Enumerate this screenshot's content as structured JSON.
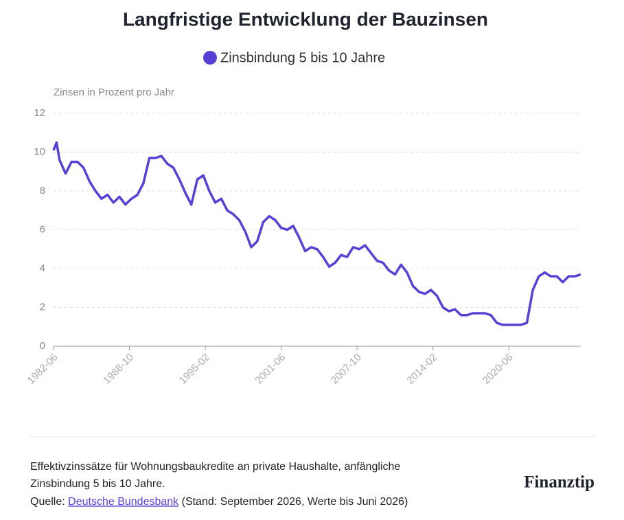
{
  "chart_data": {
    "type": "line",
    "title": "Langfristige Entwicklung der Bauzinsen",
    "y_label": "Zinsen in Prozent pro Jahr",
    "x": [
      "1982-06",
      "1982-09",
      "1982-12",
      "1983-06",
      "1983-12",
      "1984-06",
      "1984-12",
      "1985-06",
      "1985-12",
      "1986-06",
      "1986-12",
      "1987-06",
      "1987-12",
      "1988-06",
      "1988-12",
      "1989-06",
      "1989-12",
      "1990-06",
      "1990-12",
      "1991-06",
      "1991-12",
      "1992-06",
      "1992-12",
      "1993-06",
      "1993-12",
      "1994-06",
      "1994-12",
      "1995-06",
      "1995-12",
      "1996-06",
      "1996-12",
      "1997-06",
      "1997-12",
      "1998-06",
      "1998-12",
      "1999-06",
      "1999-12",
      "2000-06",
      "2000-12",
      "2001-06",
      "2001-12",
      "2002-06",
      "2002-12",
      "2003-06",
      "2003-12",
      "2004-06",
      "2004-12",
      "2005-06",
      "2005-12",
      "2006-06",
      "2006-12",
      "2007-06",
      "2007-12",
      "2008-06",
      "2008-12",
      "2009-06",
      "2009-12",
      "2010-06",
      "2010-12",
      "2011-06",
      "2011-12",
      "2012-06",
      "2012-12",
      "2013-06",
      "2013-12",
      "2014-06",
      "2014-12",
      "2015-06",
      "2015-12",
      "2016-06",
      "2016-12",
      "2017-06",
      "2017-12",
      "2018-06",
      "2018-12",
      "2019-06",
      "2019-12",
      "2020-06",
      "2020-12",
      "2021-06",
      "2021-12",
      "2022-06",
      "2022-12",
      "2023-06",
      "2023-12",
      "2024-06",
      "2024-12",
      "2025-06",
      "2025-12",
      "2026-06"
    ],
    "series": [
      {
        "name": "Zinsbindung 5 bis 10 Jahre",
        "color": "#5a3fd6",
        "values": [
          10.1,
          10.5,
          9.6,
          8.9,
          9.5,
          9.5,
          9.2,
          8.5,
          8.0,
          7.6,
          7.8,
          7.4,
          7.7,
          7.3,
          7.6,
          7.8,
          8.4,
          9.7,
          9.7,
          9.8,
          9.4,
          9.2,
          8.6,
          7.9,
          7.3,
          8.6,
          8.8,
          8.0,
          7.4,
          7.6,
          7.0,
          6.8,
          6.5,
          5.9,
          5.1,
          5.4,
          6.4,
          6.7,
          6.5,
          6.1,
          6.0,
          6.2,
          5.6,
          4.9,
          5.1,
          5.0,
          4.6,
          4.1,
          4.3,
          4.7,
          4.6,
          5.1,
          5.0,
          5.2,
          4.8,
          4.4,
          4.3,
          3.9,
          3.7,
          4.2,
          3.8,
          3.1,
          2.8,
          2.7,
          2.9,
          2.6,
          2.0,
          1.8,
          1.9,
          1.6,
          1.6,
          1.7,
          1.7,
          1.7,
          1.6,
          1.2,
          1.1,
          1.1,
          1.1,
          1.1,
          1.2,
          2.9,
          3.6,
          3.8,
          3.6,
          3.6,
          3.3,
          3.6,
          3.6,
          3.7
        ]
      }
    ],
    "xlim": [
      "1982-06",
      "2026-06"
    ],
    "xticks": [
      "1982-06",
      "1988-10",
      "1995-02",
      "2001-06",
      "2007-10",
      "2014-02",
      "2020-06"
    ],
    "ylim": [
      0,
      12
    ],
    "yticks": [
      0,
      2,
      4,
      6,
      8,
      10,
      12
    ],
    "grid": true
  },
  "footer": {
    "caption_line1": "Effektivzinssätze für Wohnungsbaukredite an private Haushalte, anfängliche",
    "caption_line2": "Zinsbindung 5 bis 10 Jahre.",
    "source_prefix": "Quelle:",
    "source_link": "Deutsche Bundesbank",
    "source_suffix": "(Stand: September 2026, Werte bis Juni 2026)",
    "logo": "Finanztip"
  }
}
